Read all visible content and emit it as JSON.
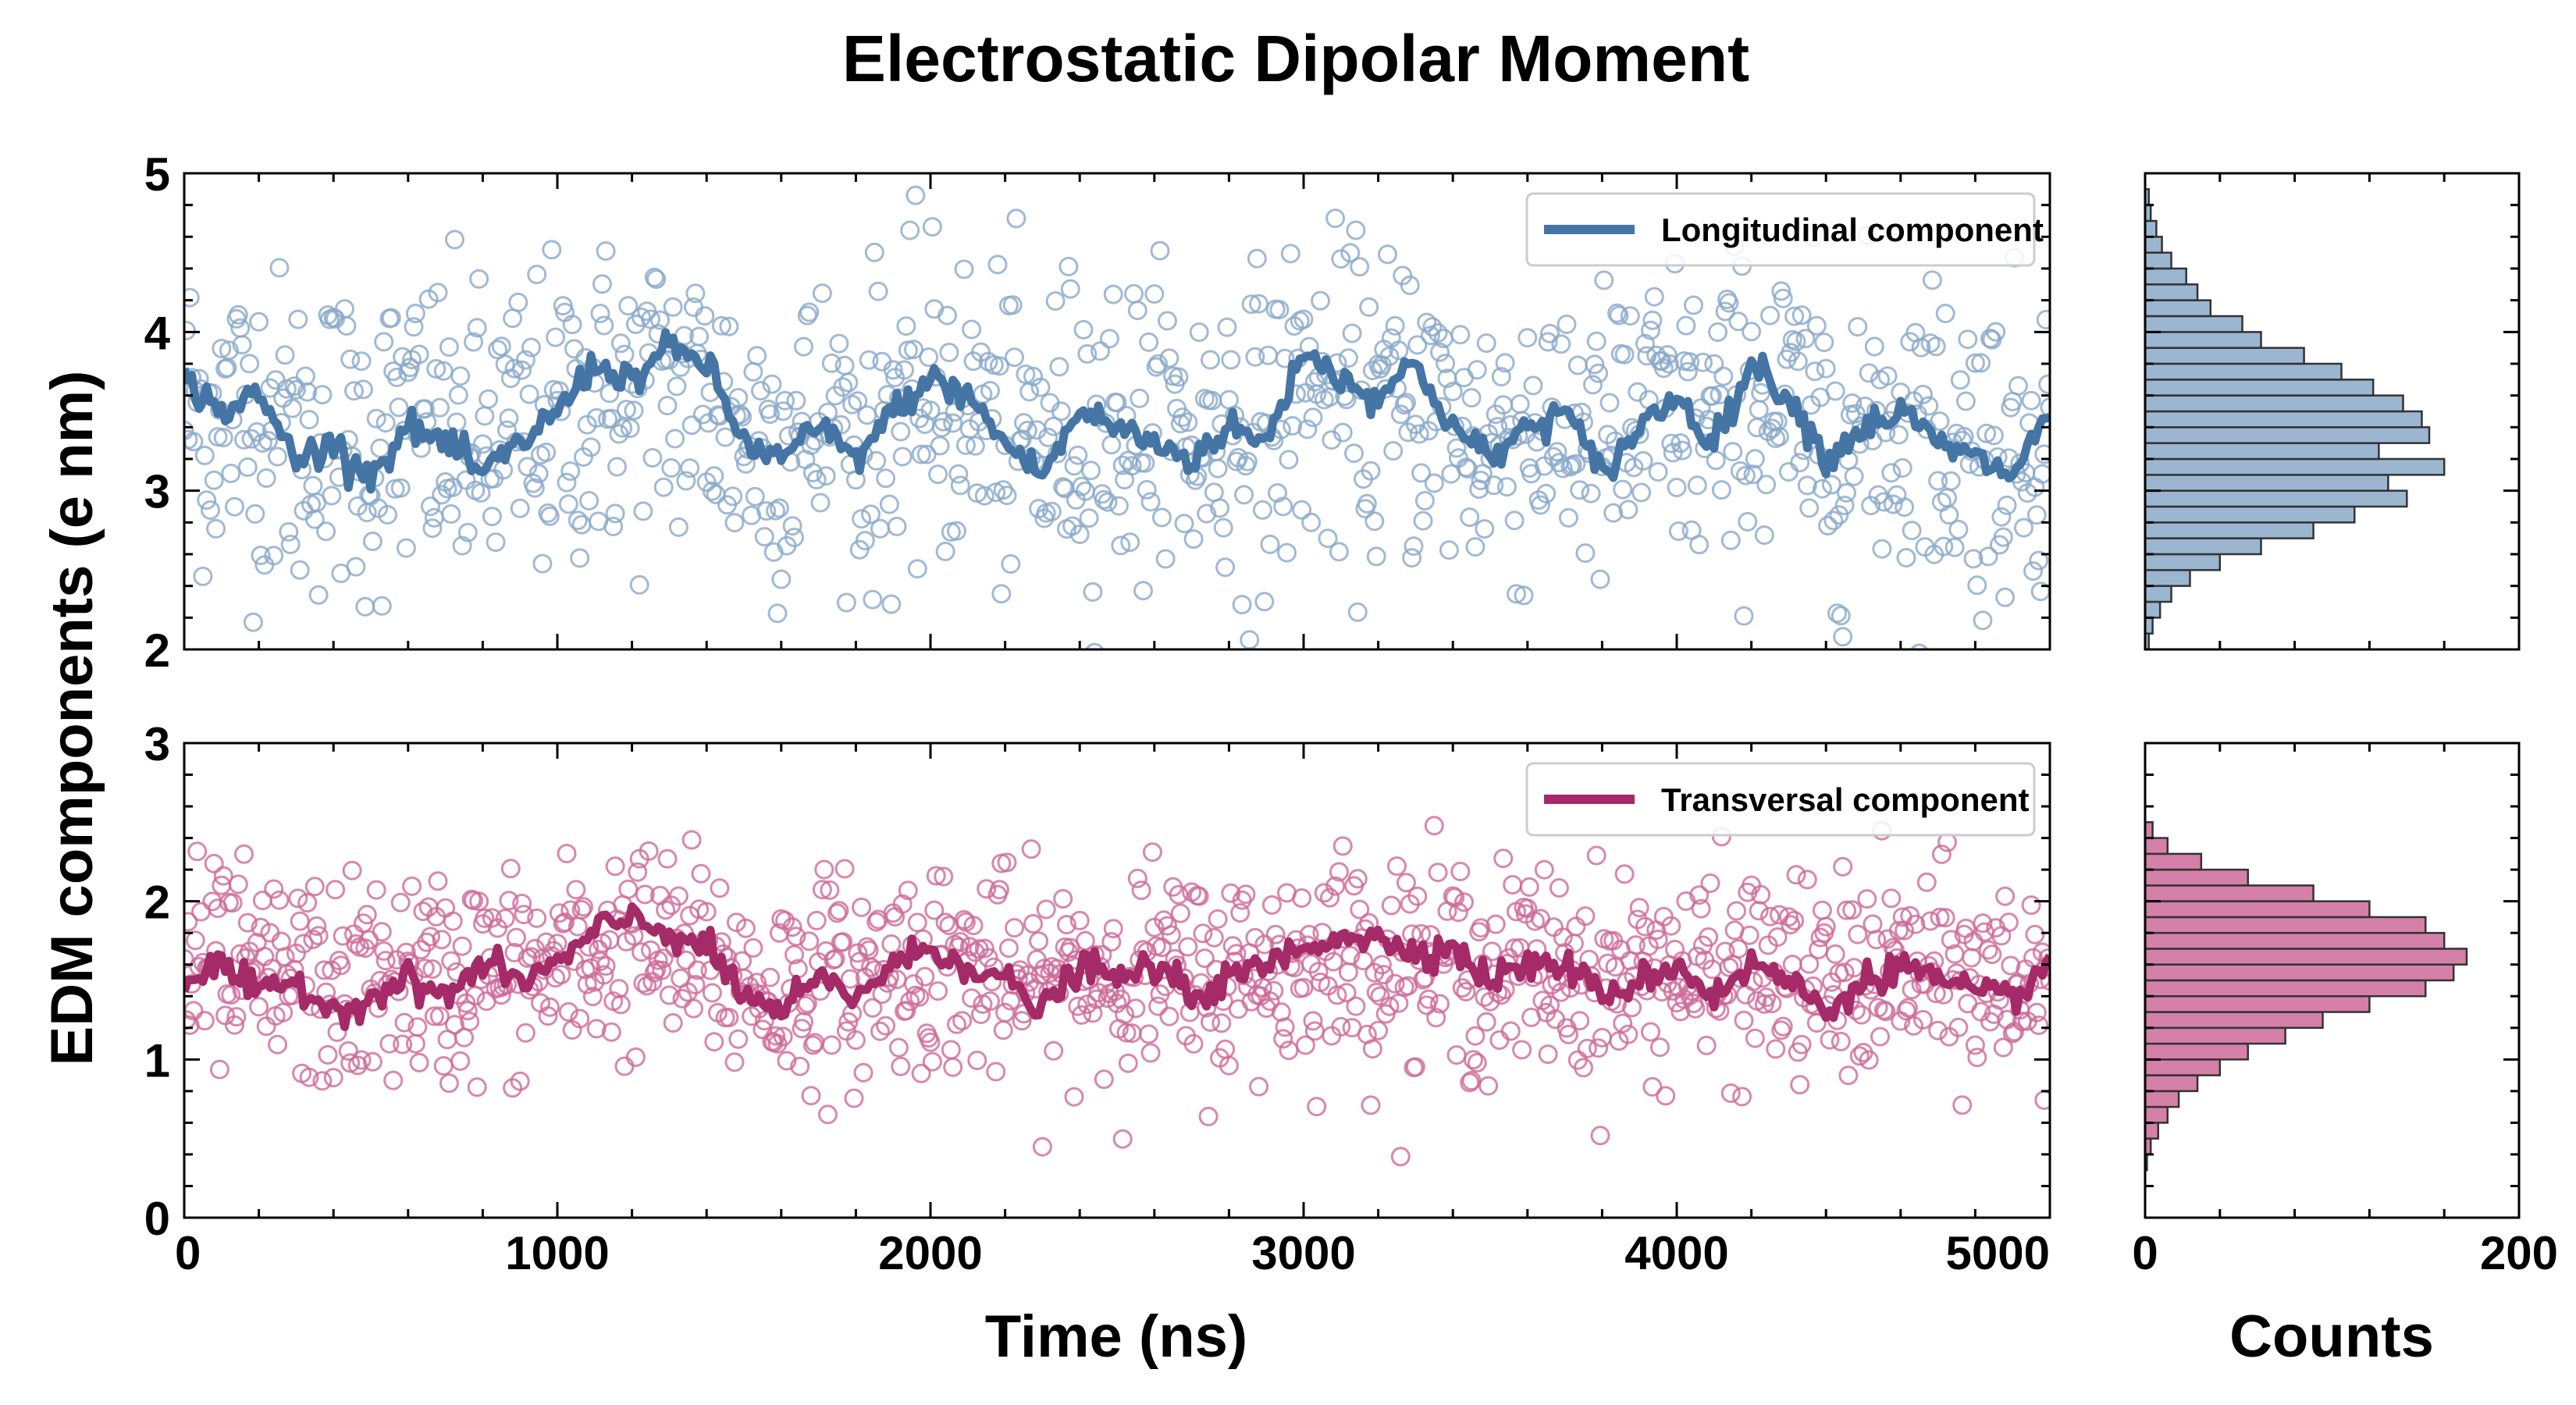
{
  "chart_data": {
    "type": "scatter",
    "title": "Electrostatic Dipolar Moment",
    "ylabel": "EDM components (e nm)",
    "xlabel": "Time (ns)",
    "hist_xlabel": "Counts",
    "xlim": [
      0,
      5000
    ],
    "hist_xlim": [
      0,
      200
    ],
    "x_ticks": [
      "0",
      "1000",
      "2000",
      "3000",
      "4000",
      "5000"
    ],
    "hist_x_ticks": [
      "0",
      "200"
    ],
    "point_spacing_ns": 5,
    "panels": [
      {
        "name": "longitudinal",
        "legend": "Longitudinal component",
        "color": "#4575a5",
        "point_color": "#8aa9c9",
        "ylim": [
          2,
          5
        ],
        "y_ticks": [
          "2",
          "3",
          "4",
          "5"
        ],
        "running_mean_x": [
          0,
          100,
          200,
          300,
          400,
          500,
          600,
          700,
          800,
          900,
          1000,
          1100,
          1200,
          1300,
          1400,
          1500,
          1600,
          1700,
          1800,
          1900,
          2000,
          2100,
          2200,
          2300,
          2400,
          2500,
          2600,
          2700,
          2800,
          2900,
          3000,
          3100,
          3200,
          3300,
          3400,
          3500,
          3600,
          3700,
          3800,
          3900,
          4000,
          4100,
          4200,
          4300,
          4400,
          4500,
          4600,
          4700,
          4800,
          4900,
          5000
        ],
        "running_mean_y": [
          3.7,
          3.5,
          3.6,
          3.2,
          3.3,
          3.1,
          3.4,
          3.3,
          3.1,
          3.3,
          3.5,
          3.8,
          3.7,
          3.9,
          3.8,
          3.3,
          3.2,
          3.4,
          3.2,
          3.5,
          3.7,
          3.6,
          3.3,
          3.1,
          3.5,
          3.4,
          3.3,
          3.2,
          3.4,
          3.3,
          3.9,
          3.7,
          3.6,
          3.8,
          3.4,
          3.2,
          3.4,
          3.5,
          3.1,
          3.4,
          3.6,
          3.3,
          3.8,
          3.6,
          3.2,
          3.4,
          3.5,
          3.3,
          3.2,
          3.1,
          3.5
        ],
        "hist_bins_low": [
          2.0,
          2.1,
          2.2,
          2.3,
          2.4,
          2.5,
          2.6,
          2.7,
          2.8,
          2.9,
          3.0,
          3.1,
          3.2,
          3.3,
          3.4,
          3.5,
          3.6,
          3.7,
          3.8,
          3.9,
          4.0,
          4.1,
          4.2,
          4.3,
          4.4,
          4.5,
          4.6,
          4.7,
          4.8
        ],
        "hist_counts": [
          2,
          4,
          8,
          14,
          24,
          40,
          62,
          90,
          112,
          140,
          130,
          160,
          125,
          152,
          148,
          138,
          122,
          105,
          85,
          62,
          52,
          35,
          28,
          22,
          14,
          9,
          6,
          3,
          2
        ],
        "scatter_mean": 3.4,
        "scatter_sd": 0.5
      },
      {
        "name": "transversal",
        "legend": "Transversal component",
        "color": "#a52a68",
        "point_color": "#cd6a9a",
        "ylim": [
          0,
          3
        ],
        "y_ticks": [
          "0",
          "1",
          "2",
          "3"
        ],
        "running_mean_x": [
          0,
          100,
          200,
          300,
          400,
          500,
          600,
          700,
          800,
          900,
          1000,
          1100,
          1200,
          1300,
          1400,
          1500,
          1600,
          1700,
          1800,
          1900,
          2000,
          2100,
          2200,
          2300,
          2400,
          2500,
          2600,
          2700,
          2800,
          2900,
          3000,
          3100,
          3200,
          3300,
          3400,
          3500,
          3600,
          3700,
          3800,
          3900,
          4000,
          4100,
          4200,
          4300,
          4400,
          4500,
          4600,
          4700,
          4800,
          4900,
          5000
        ],
        "running_mean_y": [
          1.5,
          1.6,
          1.4,
          1.5,
          1.3,
          1.4,
          1.5,
          1.4,
          1.6,
          1.5,
          1.6,
          1.8,
          1.9,
          1.8,
          1.7,
          1.4,
          1.3,
          1.5,
          1.4,
          1.6,
          1.7,
          1.6,
          1.5,
          1.3,
          1.6,
          1.5,
          1.6,
          1.4,
          1.5,
          1.6,
          1.7,
          1.8,
          1.75,
          1.7,
          1.7,
          1.5,
          1.6,
          1.6,
          1.4,
          1.5,
          1.6,
          1.4,
          1.6,
          1.5,
          1.3,
          1.5,
          1.6,
          1.5,
          1.4,
          1.4,
          1.6
        ],
        "hist_bins_low": [
          0.3,
          0.4,
          0.5,
          0.6,
          0.7,
          0.8,
          0.9,
          1.0,
          1.1,
          1.2,
          1.3,
          1.4,
          1.5,
          1.6,
          1.7,
          1.8,
          1.9,
          2.0,
          2.1,
          2.2,
          2.3,
          2.4
        ],
        "hist_counts": [
          1,
          3,
          7,
          12,
          18,
          28,
          40,
          55,
          75,
          95,
          120,
          150,
          165,
          172,
          160,
          150,
          120,
          90,
          55,
          30,
          12,
          4
        ],
        "scatter_mean": 1.55,
        "scatter_sd": 0.33
      }
    ]
  }
}
